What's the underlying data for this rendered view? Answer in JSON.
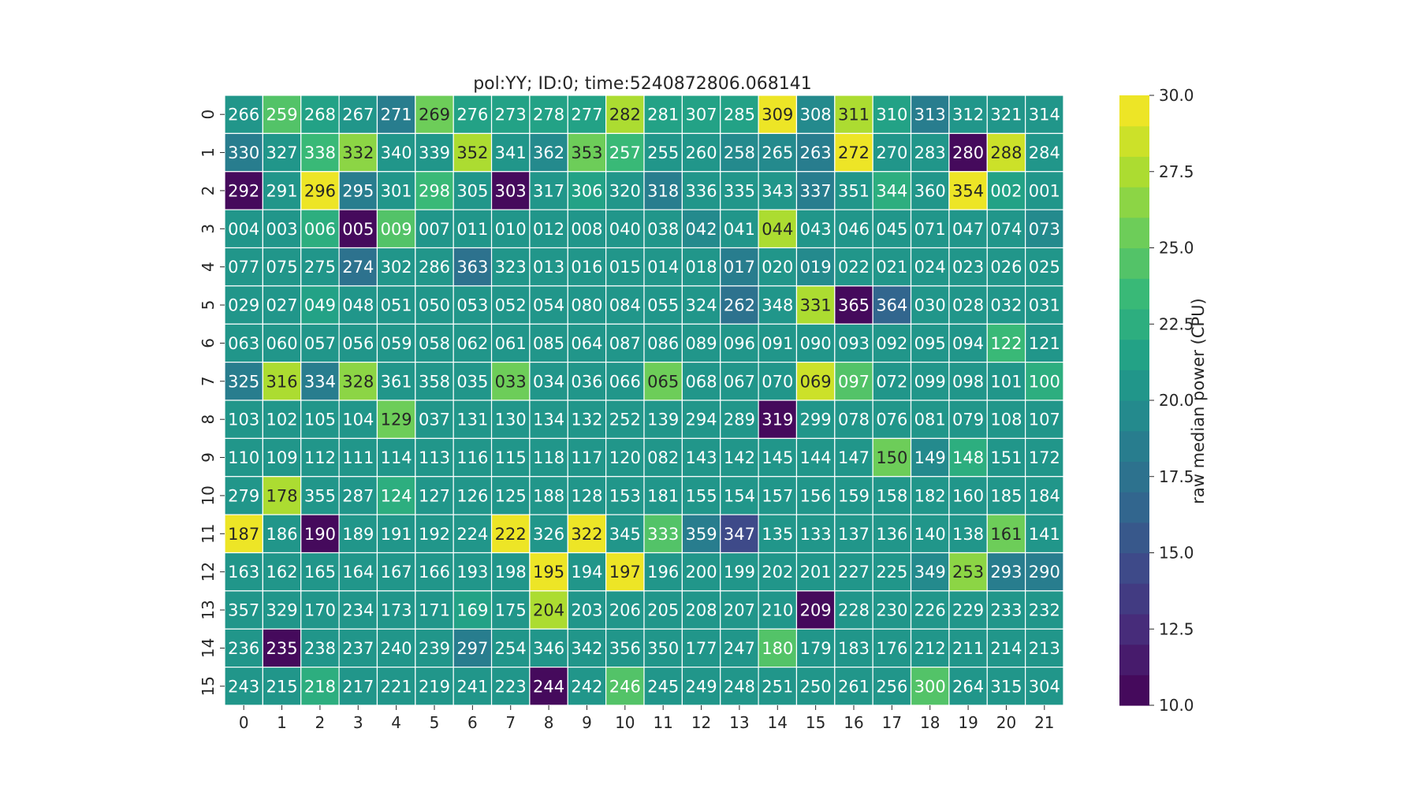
{
  "chart_data": {
    "type": "heatmap",
    "title": "pol:YY; ID:0; time:5240872806.068141",
    "x_labels": [
      "0",
      "1",
      "2",
      "3",
      "4",
      "5",
      "6",
      "7",
      "8",
      "9",
      "10",
      "11",
      "12",
      "13",
      "14",
      "15",
      "16",
      "17",
      "18",
      "19",
      "20",
      "21"
    ],
    "y_labels": [
      "0",
      "1",
      "2",
      "3",
      "4",
      "5",
      "6",
      "7",
      "8",
      "9",
      "10",
      "11",
      "12",
      "13",
      "14",
      "15"
    ],
    "annotations": [
      [
        "266",
        "259",
        "268",
        "267",
        "271",
        "269",
        "276",
        "273",
        "278",
        "277",
        "282",
        "281",
        "307",
        "285",
        "309",
        "308",
        "311",
        "310",
        "313",
        "312",
        "321",
        "314"
      ],
      [
        "330",
        "327",
        "338",
        "332",
        "340",
        "339",
        "352",
        "341",
        "362",
        "353",
        "257",
        "255",
        "260",
        "258",
        "265",
        "263",
        "272",
        "270",
        "283",
        "280",
        "288",
        "284"
      ],
      [
        "292",
        "291",
        "296",
        "295",
        "301",
        "298",
        "305",
        "303",
        "317",
        "306",
        "320",
        "318",
        "336",
        "335",
        "343",
        "337",
        "351",
        "344",
        "360",
        "354",
        "002",
        "001"
      ],
      [
        "004",
        "003",
        "006",
        "005",
        "009",
        "007",
        "011",
        "010",
        "012",
        "008",
        "040",
        "038",
        "042",
        "041",
        "044",
        "043",
        "046",
        "045",
        "071",
        "047",
        "074",
        "073"
      ],
      [
        "077",
        "075",
        "275",
        "274",
        "302",
        "286",
        "363",
        "323",
        "013",
        "016",
        "015",
        "014",
        "018",
        "017",
        "020",
        "019",
        "022",
        "021",
        "024",
        "023",
        "026",
        "025"
      ],
      [
        "029",
        "027",
        "049",
        "048",
        "051",
        "050",
        "053",
        "052",
        "054",
        "080",
        "084",
        "055",
        "324",
        "262",
        "348",
        "331",
        "365",
        "364",
        "030",
        "028",
        "032",
        "031"
      ],
      [
        "063",
        "060",
        "057",
        "056",
        "059",
        "058",
        "062",
        "061",
        "085",
        "064",
        "087",
        "086",
        "089",
        "096",
        "091",
        "090",
        "093",
        "092",
        "095",
        "094",
        "122",
        "121"
      ],
      [
        "325",
        "316",
        "334",
        "328",
        "361",
        "358",
        "035",
        "033",
        "034",
        "036",
        "066",
        "065",
        "068",
        "067",
        "070",
        "069",
        "097",
        "072",
        "099",
        "098",
        "101",
        "100"
      ],
      [
        "103",
        "102",
        "105",
        "104",
        "129",
        "037",
        "131",
        "130",
        "134",
        "132",
        "252",
        "139",
        "294",
        "289",
        "319",
        "299",
        "078",
        "076",
        "081",
        "079",
        "108",
        "107"
      ],
      [
        "110",
        "109",
        "112",
        "111",
        "114",
        "113",
        "116",
        "115",
        "118",
        "117",
        "120",
        "082",
        "143",
        "142",
        "145",
        "144",
        "147",
        "150",
        "149",
        "148",
        "151",
        "172"
      ],
      [
        "279",
        "178",
        "355",
        "287",
        "124",
        "127",
        "126",
        "125",
        "188",
        "128",
        "153",
        "181",
        "155",
        "154",
        "157",
        "156",
        "159",
        "158",
        "182",
        "160",
        "185",
        "184"
      ],
      [
        "187",
        "186",
        "190",
        "189",
        "191",
        "192",
        "224",
        "222",
        "326",
        "322",
        "345",
        "333",
        "359",
        "347",
        "135",
        "133",
        "137",
        "136",
        "140",
        "138",
        "161",
        "141"
      ],
      [
        "163",
        "162",
        "165",
        "164",
        "167",
        "166",
        "193",
        "198",
        "195",
        "194",
        "197",
        "196",
        "200",
        "199",
        "202",
        "201",
        "227",
        "225",
        "349",
        "253",
        "293",
        "290"
      ],
      [
        "357",
        "329",
        "170",
        "234",
        "173",
        "171",
        "169",
        "175",
        "204",
        "203",
        "206",
        "205",
        "208",
        "207",
        "210",
        "209",
        "228",
        "230",
        "226",
        "229",
        "233",
        "232"
      ],
      [
        "236",
        "235",
        "238",
        "237",
        "240",
        "239",
        "297",
        "254",
        "346",
        "342",
        "356",
        "350",
        "177",
        "247",
        "180",
        "179",
        "183",
        "176",
        "212",
        "211",
        "214",
        "213"
      ],
      [
        "243",
        "215",
        "218",
        "217",
        "221",
        "219",
        "241",
        "223",
        "244",
        "242",
        "246",
        "245",
        "249",
        "248",
        "251",
        "250",
        "261",
        "256",
        "300",
        "264",
        "315",
        "304"
      ]
    ],
    "values": [
      [
        20.5,
        24.0,
        21.0,
        20.8,
        18.0,
        25.0,
        21.2,
        21.0,
        21.5,
        21.8,
        27.3,
        21.4,
        21.6,
        21.2,
        29.5,
        19.8,
        27.5,
        21.0,
        18.8,
        20.5,
        20.2,
        20.8
      ],
      [
        18.5,
        20.0,
        23.5,
        26.0,
        20.0,
        20.5,
        27.0,
        20.4,
        19.8,
        25.2,
        23.0,
        20.6,
        20.3,
        19.2,
        19.5,
        18.8,
        29.8,
        20.6,
        20.2,
        10.5,
        28.2,
        20.3
      ],
      [
        10.2,
        20.2,
        29.8,
        18.0,
        20.0,
        23.8,
        20.4,
        10.0,
        20.3,
        21.1,
        20.2,
        18.7,
        20.0,
        20.1,
        20.3,
        18.9,
        20.0,
        22.5,
        20.0,
        29.8,
        21.2,
        20.8
      ],
      [
        20.6,
        20.2,
        22.0,
        10.2,
        24.8,
        20.4,
        20.8,
        20.4,
        20.3,
        20.6,
        20.0,
        20.0,
        19.8,
        20.2,
        27.5,
        20.3,
        20.2,
        20.6,
        20.0,
        20.2,
        20.0,
        19.8
      ],
      [
        20.2,
        20.0,
        20.3,
        17.0,
        20.5,
        20.5,
        17.5,
        20.0,
        20.3,
        20.0,
        20.3,
        20.3,
        20.3,
        18.5,
        20.2,
        19.8,
        20.0,
        20.0,
        20.3,
        20.2,
        20.2,
        20.5
      ],
      [
        20.3,
        20.2,
        21.0,
        20.0,
        20.3,
        20.0,
        20.3,
        20.3,
        20.0,
        20.0,
        20.6,
        20.4,
        20.3,
        17.5,
        20.2,
        27.0,
        10.2,
        16.5,
        20.2,
        20.0,
        20.2,
        20.4
      ],
      [
        20.0,
        20.5,
        20.2,
        20.2,
        20.2,
        20.2,
        20.0,
        20.2,
        20.5,
        20.3,
        20.3,
        20.0,
        20.3,
        20.0,
        20.3,
        20.2,
        20.5,
        20.4,
        20.2,
        20.0,
        23.0,
        20.4
      ],
      [
        18.0,
        27.5,
        18.5,
        26.0,
        20.4,
        20.3,
        20.3,
        25.5,
        20.4,
        20.3,
        20.6,
        25.0,
        20.3,
        20.2,
        20.4,
        28.0,
        24.5,
        20.2,
        20.6,
        20.3,
        20.3,
        22.8
      ],
      [
        20.3,
        20.2,
        20.6,
        20.3,
        25.2,
        20.3,
        20.4,
        20.4,
        20.3,
        20.4,
        20.3,
        20.0,
        20.3,
        20.5,
        10.3,
        20.2,
        20.0,
        20.3,
        20.2,
        20.2,
        20.3,
        20.4
      ],
      [
        20.3,
        20.2,
        20.3,
        20.2,
        20.3,
        20.3,
        20.2,
        20.3,
        20.0,
        20.3,
        20.5,
        20.0,
        20.3,
        20.3,
        20.4,
        20.3,
        20.3,
        25.2,
        19.5,
        22.5,
        20.4,
        20.3
      ],
      [
        20.0,
        27.8,
        20.2,
        20.2,
        22.0,
        20.2,
        20.3,
        20.4,
        20.2,
        20.2,
        20.0,
        20.3,
        20.2,
        20.0,
        20.2,
        20.3,
        20.2,
        20.0,
        20.3,
        20.2,
        20.3,
        20.3
      ],
      [
        29.8,
        20.0,
        10.2,
        20.2,
        20.3,
        20.3,
        20.2,
        29.5,
        20.6,
        29.0,
        20.2,
        24.5,
        18.0,
        14.8,
        20.3,
        20.3,
        20.2,
        20.2,
        20.3,
        20.3,
        25.0,
        20.3
      ],
      [
        20.4,
        20.3,
        20.4,
        20.3,
        20.3,
        20.2,
        20.0,
        20.3,
        29.8,
        20.3,
        29.8,
        20.3,
        20.3,
        20.4,
        20.3,
        20.3,
        20.3,
        20.4,
        19.8,
        26.0,
        18.2,
        18.0
      ],
      [
        20.2,
        20.3,
        20.2,
        20.0,
        20.3,
        20.3,
        21.5,
        20.4,
        27.2,
        20.3,
        20.2,
        20.3,
        20.3,
        20.2,
        20.3,
        10.2,
        20.3,
        20.2,
        20.3,
        20.2,
        20.4,
        20.2
      ],
      [
        20.3,
        10.2,
        20.4,
        20.3,
        20.4,
        20.3,
        18.0,
        20.3,
        20.4,
        20.3,
        20.4,
        20.3,
        20.3,
        20.2,
        24.5,
        20.3,
        20.2,
        20.3,
        20.2,
        20.3,
        20.2,
        20.3
      ],
      [
        20.2,
        20.3,
        22.0,
        20.2,
        20.3,
        20.2,
        20.3,
        20.2,
        10.2,
        20.3,
        24.0,
        20.2,
        20.3,
        20.2,
        20.3,
        20.2,
        20.4,
        20.2,
        24.5,
        20.2,
        20.3,
        20.2
      ]
    ],
    "colorbar": {
      "label": "raw median power (CPU)",
      "range": [
        10.0,
        30.0
      ],
      "ticks": [
        "10.0",
        "12.5",
        "15.0",
        "17.5",
        "20.0",
        "22.5",
        "25.0",
        "27.5",
        "30.0"
      ],
      "tick_values": [
        10.0,
        12.5,
        15.0,
        17.5,
        20.0,
        22.5,
        25.0,
        27.5,
        30.0
      ],
      "colormap": "viridis",
      "levels": 20
    }
  }
}
